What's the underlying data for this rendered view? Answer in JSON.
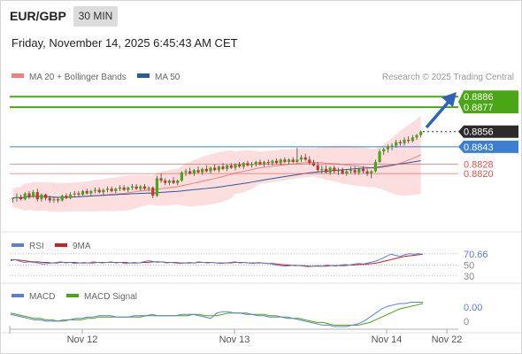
{
  "header": {
    "symbol": "EUR/GBP",
    "interval": "30 MIN",
    "datetime": "Friday, November 14, 2025 6:45:43 AM CET"
  },
  "legend": {
    "ma20_label": "MA 20 + Bollinger Bands",
    "ma50_label": "MA 50",
    "credit": "Research © 2025 Trading Central",
    "ma20_color": "#f08080",
    "ma50_color": "#2e5a9c"
  },
  "colors": {
    "target_green": "#4aa614",
    "last_price_bg": "#2b2b2b",
    "pivot_blue": "#3a7fd5",
    "support_red": "#d9534f",
    "candle_up": "#4aa614",
    "candle_down": "#c0392b",
    "arrow": "#2f63b5"
  },
  "rsi_legend": {
    "rsi_label": "RSI",
    "ma_label": "9MA"
  },
  "macd_legend": {
    "macd_label": "MACD",
    "signal_label": "MACD Signal"
  },
  "chart_data": {
    "type": "candlestick",
    "symbol": "EUR/GBP",
    "interval": "30 MIN",
    "x_tick_labels": [
      "Nov 12",
      "Nov 13",
      "Nov 14",
      "Nov 22"
    ],
    "price_levels": [
      {
        "label": "0.8886",
        "value": 0.8886,
        "kind": "target"
      },
      {
        "label": "0.8877",
        "value": 0.8877,
        "kind": "target"
      },
      {
        "label": "0.8856",
        "value": 0.8856,
        "kind": "last"
      },
      {
        "label": "0.8843",
        "value": 0.8843,
        "kind": "pivot"
      },
      {
        "label": "0.8828",
        "value": 0.8828,
        "kind": "support"
      },
      {
        "label": "0.8820",
        "value": 0.882,
        "kind": "support"
      }
    ],
    "price_ylim": [
      0.877,
      0.8893
    ],
    "candles": [
      [
        0.8799,
        0.8799,
        0.8795,
        0.8799
      ],
      [
        0.8799,
        0.8803,
        0.8796,
        0.88
      ],
      [
        0.88,
        0.8802,
        0.8797,
        0.8798
      ],
      [
        0.8798,
        0.8804,
        0.8797,
        0.8803
      ],
      [
        0.8803,
        0.8805,
        0.8798,
        0.88
      ],
      [
        0.88,
        0.8806,
        0.8799,
        0.8804
      ],
      [
        0.8804,
        0.8807,
        0.8796,
        0.8798
      ],
      [
        0.8798,
        0.8803,
        0.8796,
        0.8802
      ],
      [
        0.8802,
        0.8803,
        0.8797,
        0.8799
      ],
      [
        0.8799,
        0.8801,
        0.8795,
        0.8797
      ],
      [
        0.8797,
        0.88,
        0.8795,
        0.8798
      ],
      [
        0.8798,
        0.88,
        0.8795,
        0.8797
      ],
      [
        0.8797,
        0.8802,
        0.8796,
        0.8801
      ],
      [
        0.8801,
        0.8803,
        0.8798,
        0.8799
      ],
      [
        0.8799,
        0.8804,
        0.8798,
        0.8802
      ],
      [
        0.8802,
        0.8805,
        0.88,
        0.8803
      ],
      [
        0.8803,
        0.8805,
        0.88,
        0.8802
      ],
      [
        0.8802,
        0.8806,
        0.8801,
        0.8805
      ],
      [
        0.8805,
        0.8807,
        0.8802,
        0.8803
      ],
      [
        0.8803,
        0.8806,
        0.8801,
        0.8805
      ],
      [
        0.8805,
        0.8808,
        0.8803,
        0.8806
      ],
      [
        0.8806,
        0.8808,
        0.8803,
        0.8804
      ],
      [
        0.8804,
        0.8807,
        0.8802,
        0.8806
      ],
      [
        0.8806,
        0.8809,
        0.8804,
        0.8807
      ],
      [
        0.8807,
        0.8809,
        0.8804,
        0.8805
      ],
      [
        0.8805,
        0.8808,
        0.8803,
        0.8807
      ],
      [
        0.8807,
        0.881,
        0.8805,
        0.8808
      ],
      [
        0.8808,
        0.881,
        0.8805,
        0.8806
      ],
      [
        0.8806,
        0.8809,
        0.8804,
        0.8808
      ],
      [
        0.8808,
        0.8811,
        0.8806,
        0.8809
      ],
      [
        0.8809,
        0.8811,
        0.8806,
        0.8807
      ],
      [
        0.8807,
        0.881,
        0.8805,
        0.8809
      ],
      [
        0.8809,
        0.8811,
        0.8806,
        0.8807
      ],
      [
        0.8807,
        0.8809,
        0.8805,
        0.8808
      ],
      [
        0.8808,
        0.8809,
        0.8799,
        0.8801
      ],
      [
        0.8801,
        0.8818,
        0.88,
        0.8816
      ],
      [
        0.8816,
        0.882,
        0.8812,
        0.8814
      ],
      [
        0.8814,
        0.8816,
        0.881,
        0.8812
      ],
      [
        0.8812,
        0.8815,
        0.881,
        0.8814
      ],
      [
        0.8814,
        0.8817,
        0.8811,
        0.8812
      ],
      [
        0.8812,
        0.8815,
        0.881,
        0.8814
      ],
      [
        0.8814,
        0.8822,
        0.8813,
        0.8821
      ],
      [
        0.8821,
        0.8824,
        0.8818,
        0.8822
      ],
      [
        0.8822,
        0.8825,
        0.8819,
        0.882
      ],
      [
        0.882,
        0.8824,
        0.8818,
        0.8823
      ],
      [
        0.8823,
        0.8826,
        0.882,
        0.8821
      ],
      [
        0.8821,
        0.8825,
        0.8819,
        0.8824
      ],
      [
        0.8824,
        0.8827,
        0.8821,
        0.8822
      ],
      [
        0.8822,
        0.8826,
        0.882,
        0.8825
      ],
      [
        0.8825,
        0.8828,
        0.8822,
        0.8823
      ],
      [
        0.8823,
        0.8827,
        0.8821,
        0.8826
      ],
      [
        0.8826,
        0.8829,
        0.8823,
        0.8824
      ],
      [
        0.8824,
        0.8828,
        0.8822,
        0.8827
      ],
      [
        0.8827,
        0.8829,
        0.8824,
        0.8825
      ],
      [
        0.8825,
        0.8829,
        0.8823,
        0.8828
      ],
      [
        0.8828,
        0.883,
        0.8825,
        0.8826
      ],
      [
        0.8826,
        0.883,
        0.8824,
        0.8829
      ],
      [
        0.8829,
        0.8831,
        0.8826,
        0.8827
      ],
      [
        0.8827,
        0.883,
        0.8825,
        0.8828
      ],
      [
        0.8828,
        0.8831,
        0.8826,
        0.883
      ],
      [
        0.883,
        0.8832,
        0.8827,
        0.8828
      ],
      [
        0.8828,
        0.8831,
        0.8826,
        0.883
      ],
      [
        0.883,
        0.8832,
        0.8827,
        0.8829
      ],
      [
        0.8829,
        0.8832,
        0.8827,
        0.8831
      ],
      [
        0.8831,
        0.8833,
        0.8828,
        0.8829
      ],
      [
        0.8829,
        0.8833,
        0.8827,
        0.8832
      ],
      [
        0.8832,
        0.8834,
        0.8829,
        0.883
      ],
      [
        0.883,
        0.8833,
        0.8828,
        0.8832
      ],
      [
        0.8832,
        0.8834,
        0.8829,
        0.883
      ],
      [
        0.883,
        0.8842,
        0.8829,
        0.8832
      ],
      [
        0.8832,
        0.8836,
        0.883,
        0.8834
      ],
      [
        0.8834,
        0.8837,
        0.8831,
        0.8832
      ],
      [
        0.8832,
        0.8835,
        0.8828,
        0.8829
      ],
      [
        0.8829,
        0.8832,
        0.8826,
        0.8827
      ],
      [
        0.8827,
        0.883,
        0.8821,
        0.8823
      ],
      [
        0.8823,
        0.8827,
        0.882,
        0.8824
      ],
      [
        0.8824,
        0.8827,
        0.882,
        0.8821
      ],
      [
        0.8821,
        0.8826,
        0.8819,
        0.8825
      ],
      [
        0.8825,
        0.8827,
        0.882,
        0.8822
      ],
      [
        0.8822,
        0.8825,
        0.8819,
        0.8823
      ],
      [
        0.8823,
        0.8825,
        0.8819,
        0.882
      ],
      [
        0.882,
        0.8824,
        0.8818,
        0.8822
      ],
      [
        0.8822,
        0.8826,
        0.882,
        0.8823
      ],
      [
        0.8823,
        0.8826,
        0.8819,
        0.8821
      ],
      [
        0.8821,
        0.8825,
        0.8819,
        0.8824
      ],
      [
        0.8824,
        0.8826,
        0.882,
        0.8822
      ],
      [
        0.8822,
        0.8824,
        0.8818,
        0.882
      ],
      [
        0.882,
        0.8823,
        0.8816,
        0.8822
      ],
      [
        0.8822,
        0.8832,
        0.8821,
        0.883
      ],
      [
        0.883,
        0.8841,
        0.8829,
        0.8839
      ],
      [
        0.8839,
        0.8842,
        0.8836,
        0.8841
      ],
      [
        0.8841,
        0.8845,
        0.8838,
        0.8843
      ],
      [
        0.8843,
        0.8846,
        0.884,
        0.8844
      ],
      [
        0.8844,
        0.8849,
        0.8842,
        0.8847
      ],
      [
        0.8847,
        0.8849,
        0.8844,
        0.8846
      ],
      [
        0.8846,
        0.8851,
        0.8844,
        0.8849
      ],
      [
        0.8849,
        0.8852,
        0.8846,
        0.8848
      ],
      [
        0.8848,
        0.8853,
        0.8847,
        0.8851
      ],
      [
        0.8851,
        0.8854,
        0.8849,
        0.8853
      ],
      [
        0.8853,
        0.8857,
        0.8851,
        0.8856
      ]
    ],
    "rsi": {
      "ylim": [
        20,
        85
      ],
      "ticks": [
        {
          "label": "70.66",
          "value": 70.66,
          "kind": "current"
        },
        {
          "label": "50",
          "value": 50,
          "kind": "tick"
        },
        {
          "label": "30",
          "value": 30,
          "kind": "tick"
        }
      ],
      "rsi_values": [
        58,
        60,
        57,
        55,
        56,
        55,
        54,
        52,
        53,
        54,
        55,
        56,
        54,
        55,
        53,
        54,
        55,
        54,
        56,
        55,
        54,
        55,
        56,
        54,
        55,
        53,
        54,
        55,
        54,
        56,
        58,
        57,
        55,
        56,
        54,
        55,
        54,
        53,
        54,
        55,
        54,
        56,
        55,
        54,
        55,
        54,
        53,
        54,
        55,
        56,
        54,
        55,
        54,
        53,
        55,
        54,
        53,
        52,
        50,
        49,
        48,
        49,
        50,
        49,
        48,
        47,
        48,
        49,
        48,
        50,
        49,
        48,
        50,
        51,
        50,
        52,
        53,
        52,
        54,
        56,
        58,
        62,
        66,
        70,
        68,
        66,
        69,
        71,
        70,
        71,
        70
      ],
      "ma_values": [
        60,
        60,
        59,
        58,
        57,
        56,
        56,
        55,
        55,
        54,
        54,
        55,
        55,
        55,
        55,
        54,
        54,
        54,
        54,
        55,
        55,
        55,
        55,
        55,
        55,
        55,
        54,
        54,
        54,
        55,
        55,
        56,
        56,
        56,
        55,
        55,
        55,
        54,
        54,
        54,
        54,
        55,
        55,
        55,
        55,
        54,
        54,
        54,
        54,
        55,
        55,
        55,
        54,
        54,
        54,
        54,
        53,
        53,
        52,
        51,
        50,
        50,
        49,
        49,
        49,
        48,
        48,
        48,
        48,
        48,
        49,
        49,
        49,
        49,
        50,
        50,
        51,
        51,
        52,
        53,
        54,
        56,
        58,
        60,
        62,
        64,
        66,
        67,
        68,
        69,
        70
      ]
    },
    "macd": {
      "ylim": [
        -0.0009,
        0.0012
      ],
      "ticks": [
        {
          "label": "0.00",
          "value": 0.0,
          "kind": "current"
        },
        {
          "label": "0",
          "value": -0.0004,
          "kind": "tick"
        }
      ],
      "macd_values": [
        0.0002,
        0.0001,
        0.0,
        -0.0001,
        -0.0002,
        -0.0002,
        -0.0003,
        -0.0003,
        -0.0003,
        -0.0002,
        -0.0002,
        -0.0001,
        -0.0001,
        0.0,
        0.0,
        0.0001,
        0.0001,
        0.0001,
        0.0,
        0.0,
        0.0,
        0.0001,
        0.0001,
        0.0001,
        0.0002,
        0.0001,
        0.0001,
        0.0001,
        0.0001,
        0.0002,
        0.0002,
        0.0002,
        0.0001,
        0.0,
        -0.0001,
        0.0003,
        0.0004,
        0.0004,
        0.0003,
        0.0003,
        0.0002,
        0.0002,
        0.0001,
        0.0001,
        0.0,
        0.0,
        0.0,
        -0.0001,
        -0.0001,
        -0.0002,
        -0.0003,
        -0.0004,
        -0.0005,
        -0.0006,
        -0.0006,
        -0.0007,
        -0.0007,
        -0.0007,
        -0.0006,
        -0.0005,
        -0.0003,
        0.0,
        0.0003,
        0.0006,
        0.0008,
        0.0009,
        0.001,
        0.001,
        0.0011,
        0.0011,
        0.0011
      ],
      "signal_values": [
        0.0003,
        0.0002,
        0.0001,
        0.0,
        -0.0001,
        -0.0001,
        -0.0002,
        -0.0002,
        -0.0003,
        -0.0003,
        -0.0002,
        -0.0002,
        -0.0002,
        -0.0001,
        -0.0001,
        0.0,
        0.0,
        0.0,
        0.0,
        0.0,
        0.0,
        0.0,
        0.0,
        0.0001,
        0.0001,
        0.0001,
        0.0001,
        0.0001,
        0.0001,
        0.0001,
        0.0001,
        0.0002,
        0.0002,
        0.0001,
        0.0001,
        0.0001,
        0.0002,
        0.0003,
        0.0003,
        0.0003,
        0.0003,
        0.0002,
        0.0002,
        0.0002,
        0.0001,
        0.0001,
        0.0,
        0.0,
        -0.0001,
        -0.0001,
        -0.0002,
        -0.0003,
        -0.0004,
        -0.0004,
        -0.0005,
        -0.0006,
        -0.0006,
        -0.0006,
        -0.0006,
        -0.0006,
        -0.0005,
        -0.0004,
        -0.0002,
        0.0,
        0.0002,
        0.0004,
        0.0006,
        0.0007,
        0.0008,
        0.0009,
        0.001
      ]
    }
  }
}
